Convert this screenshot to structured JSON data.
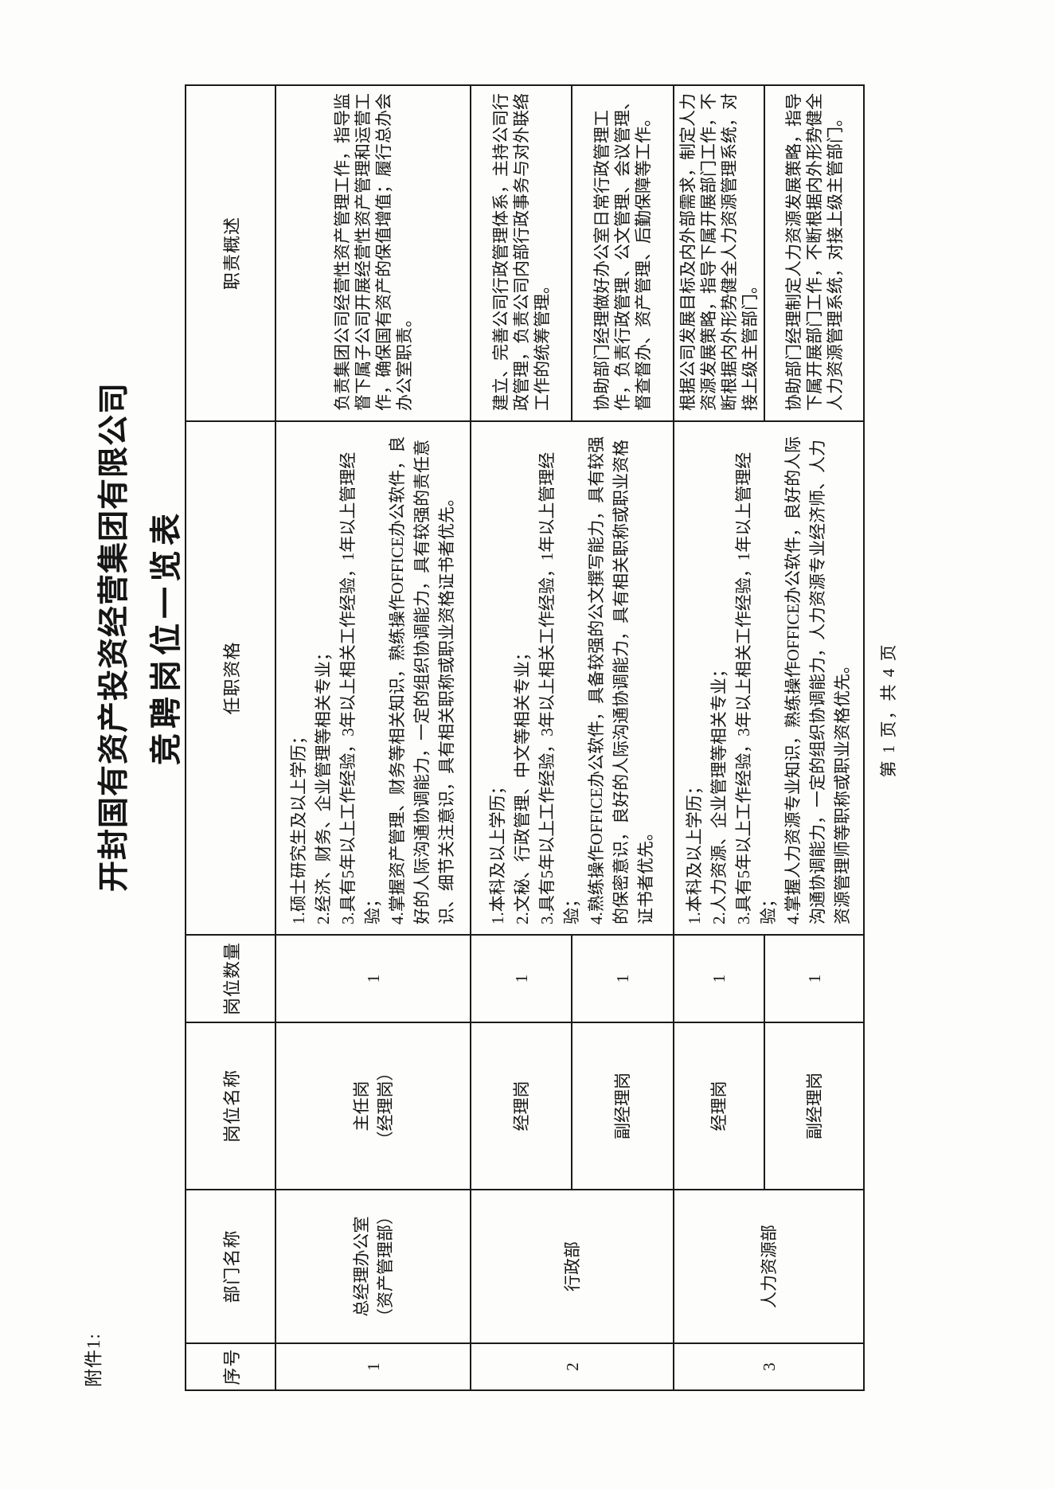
{
  "attachment_label": "附件1:",
  "title_line1": "开封国有资产投资经营集团有限公司",
  "title_line2": "竞聘岗位一览表",
  "footer": "第 1 页，共 4 页",
  "table": {
    "headers": [
      "序号",
      "部门名称",
      "岗位名称",
      "岗位数量",
      "任职资格",
      "职责概述"
    ],
    "rows": [
      {
        "seq": "1",
        "department_lines": [
          "总经理办公室",
          "（资产管理部）"
        ],
        "qualification_lines": [
          "1.硕士研究生及以上学历；",
          "2.经济、财务、企业管理等相关专业；",
          "3.具有5年以上工作经验，3年以上相关工作经验，1年以上管理经",
          "验；",
          "4.掌握资产管理、财务等相关知识，熟练操作OFFICE办公软件，良",
          "好的人际沟通协调能力，一定的组织协调能力，具有较强的责任意",
          "识、细节关注意识，具有相关职称或职业资格证书者优先。"
        ],
        "positions": [
          {
            "name_lines": [
              "主任岗",
              "（经理岗）"
            ],
            "count": "1",
            "duty_lines": [
              "负责集团公司经营性资产管理工作，指导监",
              "督下属子公司开展经营性资产管理和运营工",
              "作，确保国有资产的保值增值；履行总办会",
              "办公室职责。"
            ]
          }
        ]
      },
      {
        "seq": "2",
        "department_lines": [
          "行政部"
        ],
        "qualification_lines": [
          "1.本科及以上学历；",
          "2.文秘、行政管理、中文等相关专业；",
          "3.具有5年以上工作经验，3年以上相关工作经验，1年以上管理经",
          "验；",
          "4.熟练操作OFFICE办公软件，具备较强的公文撰写能力，具有较强",
          "的保密意识，良好的人际沟通协调能力，具有相关职称或职业资格",
          "证书者优先。"
        ],
        "positions": [
          {
            "name_lines": [
              "经理岗"
            ],
            "count": "1",
            "duty_lines": [
              "建立、完善公司行政管理体系，主持公司行",
              "政管理，负责公司内部行政事务与对外联络",
              "工作的统筹管理。"
            ]
          },
          {
            "name_lines": [
              "副经理岗"
            ],
            "count": "1",
            "duty_lines": [
              "协助部门经理做好办公室日常行政管理工",
              "作，负责行政管理、公文管理、会议管理、",
              "督查督办、资产管理、后勤保障等工作。"
            ]
          }
        ]
      },
      {
        "seq": "3",
        "department_lines": [
          "人力资源部"
        ],
        "qualification_lines": [
          "1.本科及以上学历；",
          "2.人力资源、企业管理等相关专业；",
          "3.具有5年以上工作经验，3年以上相关工作经验，1年以上管理经",
          "验；",
          "4.掌握人力资源专业知识，熟练操作OFFICE办公软件，良好的人际",
          "沟通协调能力，一定的组织协调能力，人力资源专业经济师、人力",
          "资源管理师等职称或职业资格优先。"
        ],
        "positions": [
          {
            "name_lines": [
              "经理岗"
            ],
            "count": "1",
            "duty_lines": [
              "根据公司发展目标及内外部需求，制定人力",
              "资源发展策略，指导下属开展部门工作，不",
              "断根据内外形势健全人力资源管理系统，对",
              "接上级主管部门。"
            ]
          },
          {
            "name_lines": [
              "副经理岗"
            ],
            "count": "1",
            "duty_lines": [
              "协助部门经理制定人力资源发展策略，指导",
              "下属开展部门工作，不断根据内外形势健全",
              "人力资源管理系统，对接上级主管部门。"
            ]
          }
        ]
      }
    ]
  }
}
